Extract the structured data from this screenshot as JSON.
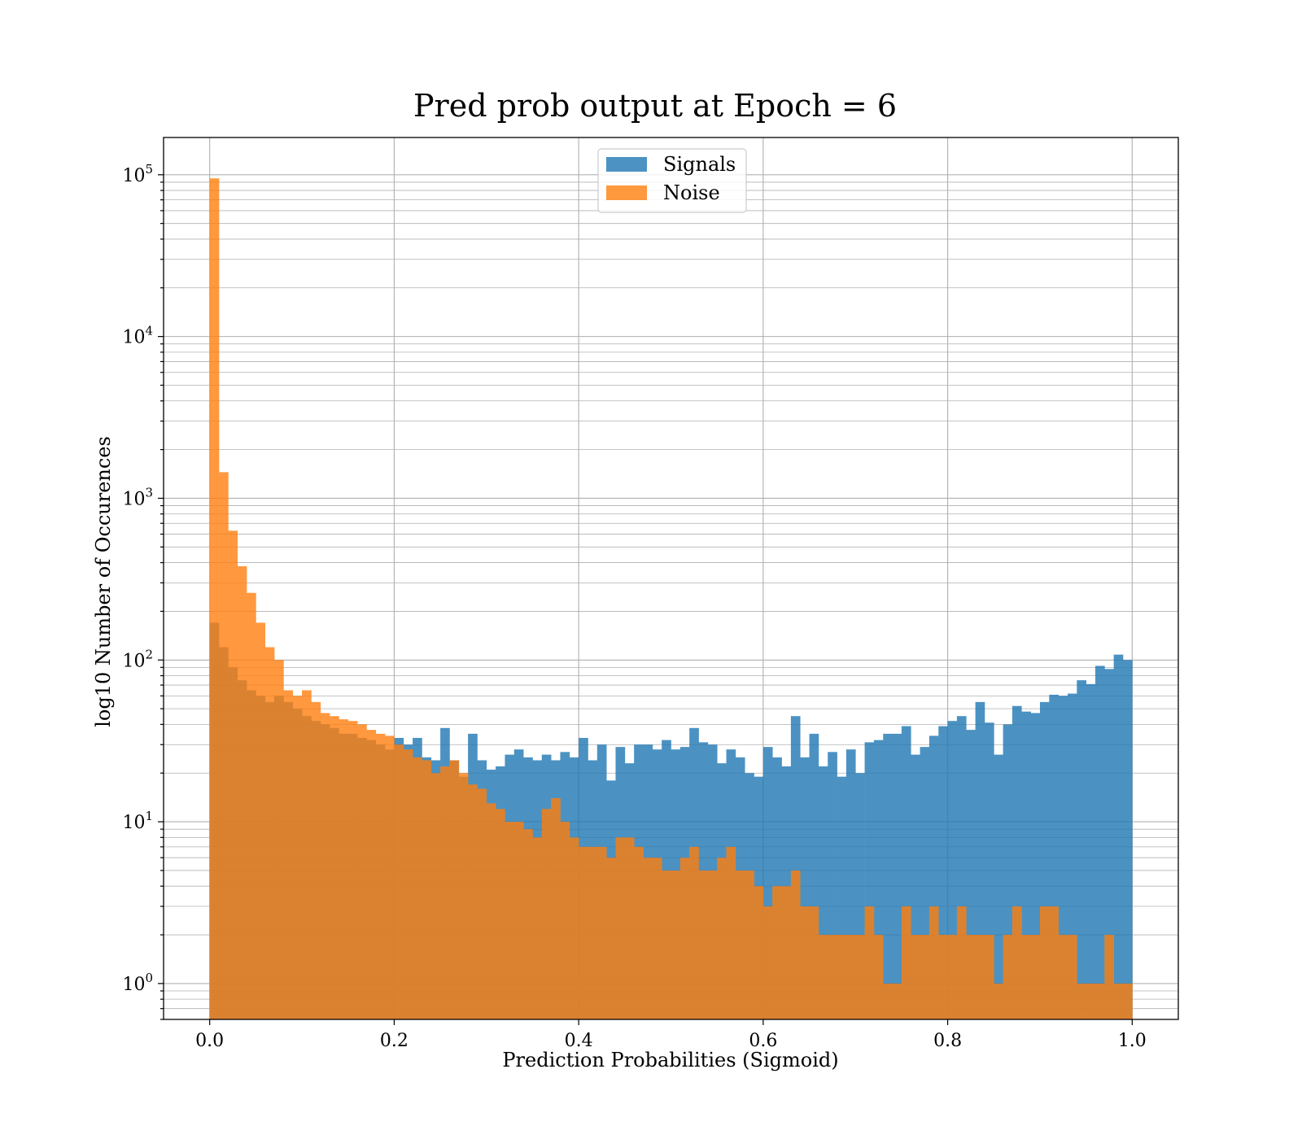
{
  "chart_data": {
    "type": "bar",
    "title": "Pred prob output at Epoch = 6",
    "xlabel": "Prediction Probabilities (Sigmoid)",
    "ylabel": "log10 Number of Occurences",
    "xlim": [
      -0.05,
      1.05
    ],
    "ylim": [
      0.6,
      170000
    ],
    "yscale": "log",
    "grid": "on (major x, major and minor y)",
    "legend_position": "top-center",
    "x_ticks": [
      {
        "value": 0.0,
        "label": "0.0"
      },
      {
        "value": 0.2,
        "label": "0.2"
      },
      {
        "value": 0.4,
        "label": "0.4"
      },
      {
        "value": 0.6,
        "label": "0.6"
      },
      {
        "value": 0.8,
        "label": "0.8"
      },
      {
        "value": 1.0,
        "label": "1.0"
      }
    ],
    "y_ticks": [
      {
        "value": 1,
        "base": "10",
        "exp": "0"
      },
      {
        "value": 10,
        "base": "10",
        "exp": "1"
      },
      {
        "value": 100,
        "base": "10",
        "exp": "2"
      },
      {
        "value": 1000,
        "base": "10",
        "exp": "3"
      },
      {
        "value": 10000,
        "base": "10",
        "exp": "4"
      },
      {
        "value": 100000,
        "base": "10",
        "exp": "5"
      }
    ],
    "bins": {
      "start": 0.0,
      "end": 1.0,
      "count": 100
    },
    "series": [
      {
        "name": "Signals",
        "color": "#1f77b4",
        "opacity": 0.8,
        "values": [
          170,
          120,
          90,
          75,
          65,
          60,
          55,
          60,
          55,
          50,
          45,
          42,
          40,
          38,
          35,
          35,
          33,
          32,
          30,
          28,
          33,
          30,
          33,
          25,
          24,
          38,
          24,
          19,
          35,
          24,
          21,
          22,
          26,
          28,
          25,
          24,
          26,
          24,
          27,
          25,
          33,
          24,
          30,
          18,
          29,
          23,
          30,
          30,
          28,
          32,
          28,
          29,
          38,
          31,
          30,
          23,
          28,
          25,
          20,
          19,
          29,
          25,
          22,
          45,
          25,
          35,
          22,
          27,
          19,
          28,
          20,
          31,
          32,
          35,
          35,
          39,
          26,
          29,
          34,
          39,
          42,
          45,
          37,
          55,
          41,
          26,
          40,
          52,
          48,
          47,
          55,
          61,
          60,
          62,
          75,
          71,
          92,
          88,
          108,
          100
        ]
      },
      {
        "name": "Noise",
        "color": "#ff7f0e",
        "opacity": 0.8,
        "values": [
          95000,
          1450,
          630,
          380,
          260,
          170,
          120,
          100,
          65,
          60,
          65,
          55,
          47,
          45,
          43,
          42,
          40,
          37,
          35,
          34,
          30,
          28,
          25,
          24,
          20,
          22,
          24,
          20,
          17,
          16,
          13,
          12,
          10,
          10,
          9,
          8,
          12,
          14,
          10,
          8,
          7,
          7,
          7,
          6,
          8,
          8,
          7,
          6,
          6,
          5,
          5,
          6,
          7,
          5,
          5,
          6,
          7,
          5,
          5,
          4,
          3,
          4,
          4,
          5,
          3,
          3,
          2,
          2,
          2,
          2,
          2,
          3,
          2,
          1,
          1,
          3,
          2,
          2,
          3,
          2,
          2,
          3,
          2,
          2,
          2,
          1,
          2,
          3,
          2,
          2,
          3,
          3,
          2,
          2,
          1,
          1,
          1,
          2,
          1,
          1
        ]
      }
    ]
  }
}
